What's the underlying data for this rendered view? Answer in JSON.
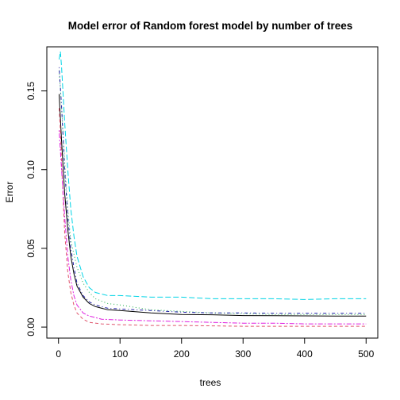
{
  "chart_data": {
    "type": "line",
    "title": "Model error of Random forest model by number of trees",
    "xlabel": "trees",
    "ylabel": "Error",
    "xlim": [
      -19,
      519
    ],
    "ylim": [
      -0.007,
      0.178
    ],
    "x_ticks": [
      0,
      100,
      200,
      300,
      400,
      500
    ],
    "y_ticks": [
      0.0,
      0.05,
      0.1,
      0.15
    ],
    "y_tick_labels": [
      "0.00",
      "0.05",
      "0.10",
      "0.15"
    ],
    "grid": false,
    "legend": "none",
    "series": [
      {
        "color": "#000000",
        "dash": "solid",
        "points": [
          [
            1,
            0.148
          ],
          [
            5,
            0.118
          ],
          [
            10,
            0.085
          ],
          [
            15,
            0.062
          ],
          [
            20,
            0.045
          ],
          [
            25,
            0.034
          ],
          [
            30,
            0.026
          ],
          [
            40,
            0.019
          ],
          [
            50,
            0.015
          ],
          [
            60,
            0.013
          ],
          [
            80,
            0.011
          ],
          [
            100,
            0.0105
          ],
          [
            150,
            0.009
          ],
          [
            200,
            0.008
          ],
          [
            250,
            0.0078
          ],
          [
            300,
            0.0073
          ],
          [
            350,
            0.0072
          ],
          [
            400,
            0.0071
          ],
          [
            450,
            0.007
          ],
          [
            500,
            0.007
          ]
        ]
      },
      {
        "color": "#df536b",
        "dash": "dashed",
        "points": [
          [
            1,
            0.139
          ],
          [
            3,
            0.125
          ],
          [
            6,
            0.095
          ],
          [
            10,
            0.06
          ],
          [
            15,
            0.035
          ],
          [
            20,
            0.022
          ],
          [
            25,
            0.014
          ],
          [
            30,
            0.009
          ],
          [
            40,
            0.005
          ],
          [
            50,
            0.003
          ],
          [
            70,
            0.002
          ],
          [
            100,
            0.0015
          ],
          [
            150,
            0.001
          ],
          [
            200,
            0.001
          ],
          [
            300,
            0.0005
          ],
          [
            400,
            0.0005
          ],
          [
            500,
            0.0005
          ]
        ]
      },
      {
        "color": "#22b14c",
        "dash": "dotted",
        "points": [
          [
            1,
            0.163
          ],
          [
            5,
            0.14
          ],
          [
            10,
            0.105
          ],
          [
            15,
            0.075
          ],
          [
            20,
            0.055
          ],
          [
            30,
            0.038
          ],
          [
            40,
            0.028
          ],
          [
            50,
            0.022
          ],
          [
            60,
            0.018
          ],
          [
            80,
            0.015
          ],
          [
            100,
            0.014
          ],
          [
            150,
            0.011
          ],
          [
            200,
            0.01
          ],
          [
            250,
            0.009
          ],
          [
            300,
            0.0085
          ],
          [
            350,
            0.008
          ],
          [
            400,
            0.008
          ],
          [
            450,
            0.008
          ],
          [
            500,
            0.008
          ]
        ]
      },
      {
        "color": "#1f1fa8",
        "dash": "dotdash",
        "points": [
          [
            1,
            0.165
          ],
          [
            5,
            0.14
          ],
          [
            10,
            0.1
          ],
          [
            15,
            0.07
          ],
          [
            20,
            0.05
          ],
          [
            25,
            0.038
          ],
          [
            30,
            0.028
          ],
          [
            40,
            0.02
          ],
          [
            50,
            0.016
          ],
          [
            60,
            0.014
          ],
          [
            80,
            0.012
          ],
          [
            100,
            0.0115
          ],
          [
            150,
            0.0105
          ],
          [
            200,
            0.0095
          ],
          [
            250,
            0.009
          ],
          [
            300,
            0.009
          ],
          [
            350,
            0.0088
          ],
          [
            400,
            0.0088
          ],
          [
            450,
            0.0088
          ],
          [
            500,
            0.0088
          ]
        ]
      },
      {
        "color": "#00d4e6",
        "dash": "longdash",
        "points": [
          [
            1,
            0.17
          ],
          [
            3,
            0.175
          ],
          [
            5,
            0.165
          ],
          [
            10,
            0.13
          ],
          [
            15,
            0.1
          ],
          [
            20,
            0.075
          ],
          [
            25,
            0.058
          ],
          [
            30,
            0.045
          ],
          [
            40,
            0.032
          ],
          [
            50,
            0.025
          ],
          [
            60,
            0.022
          ],
          [
            80,
            0.02
          ],
          [
            100,
            0.02
          ],
          [
            150,
            0.019
          ],
          [
            200,
            0.019
          ],
          [
            250,
            0.018
          ],
          [
            300,
            0.018
          ],
          [
            350,
            0.018
          ],
          [
            400,
            0.0175
          ],
          [
            450,
            0.018
          ],
          [
            500,
            0.018
          ]
        ]
      },
      {
        "color": "#e020e0",
        "dash": "twodash",
        "points": [
          [
            1,
            0.125
          ],
          [
            5,
            0.1
          ],
          [
            10,
            0.07
          ],
          [
            15,
            0.045
          ],
          [
            20,
            0.03
          ],
          [
            25,
            0.02
          ],
          [
            30,
            0.014
          ],
          [
            40,
            0.009
          ],
          [
            50,
            0.007
          ],
          [
            70,
            0.005
          ],
          [
            100,
            0.0045
          ],
          [
            150,
            0.004
          ],
          [
            200,
            0.0035
          ],
          [
            250,
            0.003
          ],
          [
            300,
            0.0025
          ],
          [
            350,
            0.0025
          ],
          [
            400,
            0.002
          ],
          [
            450,
            0.002
          ],
          [
            500,
            0.002
          ]
        ]
      }
    ]
  }
}
